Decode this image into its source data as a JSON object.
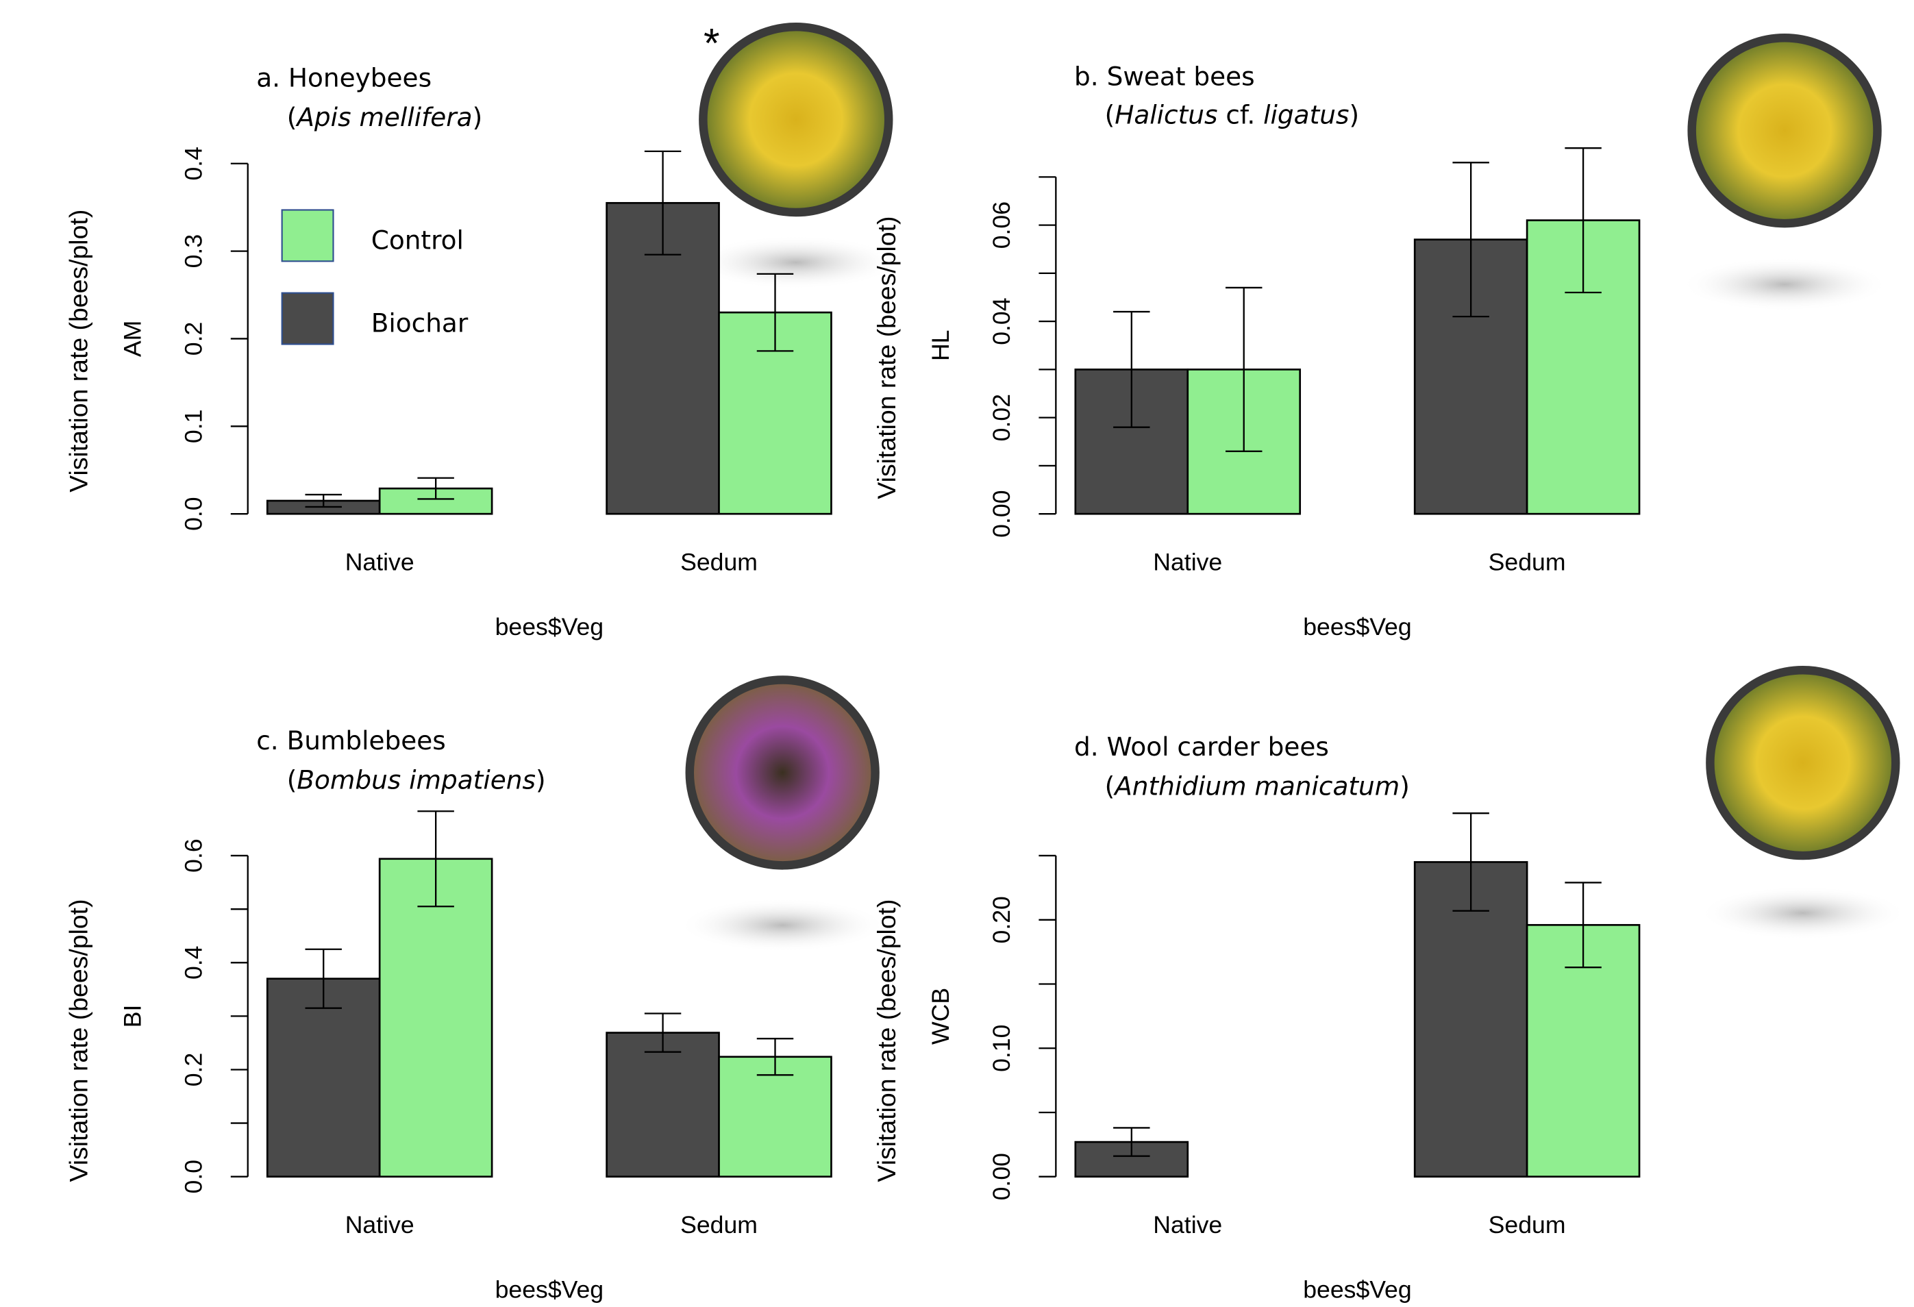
{
  "chart_data": [
    {
      "type": "bar",
      "title": "a. Honeybees",
      "subtitle": [
        {
          "text": "(",
          "italic": false
        },
        {
          "text": "Apis mellifera",
          "italic": true
        },
        {
          "text": ")",
          "italic": false
        }
      ],
      "annotation": "*",
      "ylabel": "Visitation rate (bees/plot)",
      "ylabel_code": "AM",
      "xlabel": "bees$Veg",
      "categories": [
        "Native",
        "Sedum"
      ],
      "series": [
        {
          "name": "Biochar",
          "color": "#4a4a4a",
          "values": [
            0.015,
            0.355
          ],
          "errors": [
            0.007,
            0.059
          ]
        },
        {
          "name": "Control",
          "color": "#90ee90",
          "values": [
            0.029,
            0.23
          ],
          "errors": [
            0.012,
            0.044
          ]
        }
      ],
      "legend_order": [
        1,
        0
      ],
      "ylim": [
        0,
        0.4
      ],
      "yticks": [
        {
          "value": 0,
          "label": "0.0"
        },
        0.1,
        0.2,
        0.3,
        0.4
      ]
    },
    {
      "type": "bar",
      "title": "b. Sweat bees",
      "subtitle": [
        {
          "text": "(",
          "italic": false
        },
        {
          "text": "Halictus",
          "italic": true
        },
        {
          "text": " cf. ",
          "italic": false
        },
        {
          "text": "ligatus",
          "italic": true
        },
        {
          "text": ")",
          "italic": false
        }
      ],
      "ylabel": "Visitation rate (bees/plot)",
      "ylabel_code": "HL",
      "xlabel": "bees$Veg",
      "categories": [
        "Native",
        "Sedum"
      ],
      "series": [
        {
          "color": "#4a4a4a",
          "values": [
            0.03,
            0.057
          ],
          "errors": [
            0.012,
            0.016
          ]
        },
        {
          "color": "#90ee90",
          "values": [
            0.03,
            0.061
          ],
          "errors": [
            0.017,
            0.015
          ]
        }
      ],
      "ylim": [
        0,
        0.07
      ],
      "yticks": [
        {
          "value": 0,
          "label": "0.00"
        },
        0.02,
        0.04,
        0.06
      ],
      "yticks_minor": [
        0.01,
        0.03,
        0.05,
        0.07
      ]
    },
    {
      "type": "bar",
      "title": "c. Bumblebees",
      "subtitle": [
        {
          "text": "(",
          "italic": false
        },
        {
          "text": "Bombus impatiens",
          "italic": true
        },
        {
          "text": ")",
          "italic": false
        }
      ],
      "ylabel": "Visitation rate (bees/plot)",
      "ylabel_code": "BI",
      "xlabel": "bees$Veg",
      "categories": [
        "Native",
        "Sedum"
      ],
      "series": [
        {
          "color": "#4a4a4a",
          "values": [
            0.37,
            0.269
          ],
          "errors": [
            0.055,
            0.036
          ]
        },
        {
          "color": "#90ee90",
          "values": [
            0.594,
            0.224
          ],
          "errors": [
            0.089,
            0.034
          ]
        }
      ],
      "ylim": [
        0,
        0.6
      ],
      "yticks": [
        {
          "value": 0,
          "label": "0.0"
        },
        0.2,
        0.4,
        0.6
      ],
      "yticks_minor": [
        0.1,
        0.3,
        0.5
      ]
    },
    {
      "type": "bar",
      "title": "d. Wool carder bees",
      "subtitle": [
        {
          "text": "(",
          "italic": false
        },
        {
          "text": "Anthidium manicatum",
          "italic": true
        },
        {
          "text": ")",
          "italic": false
        }
      ],
      "ylabel": "Visitation rate (bees/plot)",
      "ylabel_code": "WCB",
      "xlabel": "bees$Veg",
      "categories": [
        "Native",
        "Sedum"
      ],
      "series": [
        {
          "color": "#4a4a4a",
          "values": [
            0.027,
            0.245
          ],
          "errors": [
            0.011,
            0.038
          ]
        },
        {
          "color": "#90ee90",
          "values": [
            0,
            0.196
          ],
          "errors": [
            null,
            0.033
          ]
        }
      ],
      "ylim": [
        0,
        0.25
      ],
      "yticks": [
        {
          "value": 0,
          "label": "0.00"
        },
        {
          "value": 0.1,
          "label": "0.10"
        },
        {
          "value": 0.2,
          "label": "0.20"
        }
      ],
      "yticks_minor": [
        0.05,
        0.15,
        0.25
      ]
    }
  ]
}
